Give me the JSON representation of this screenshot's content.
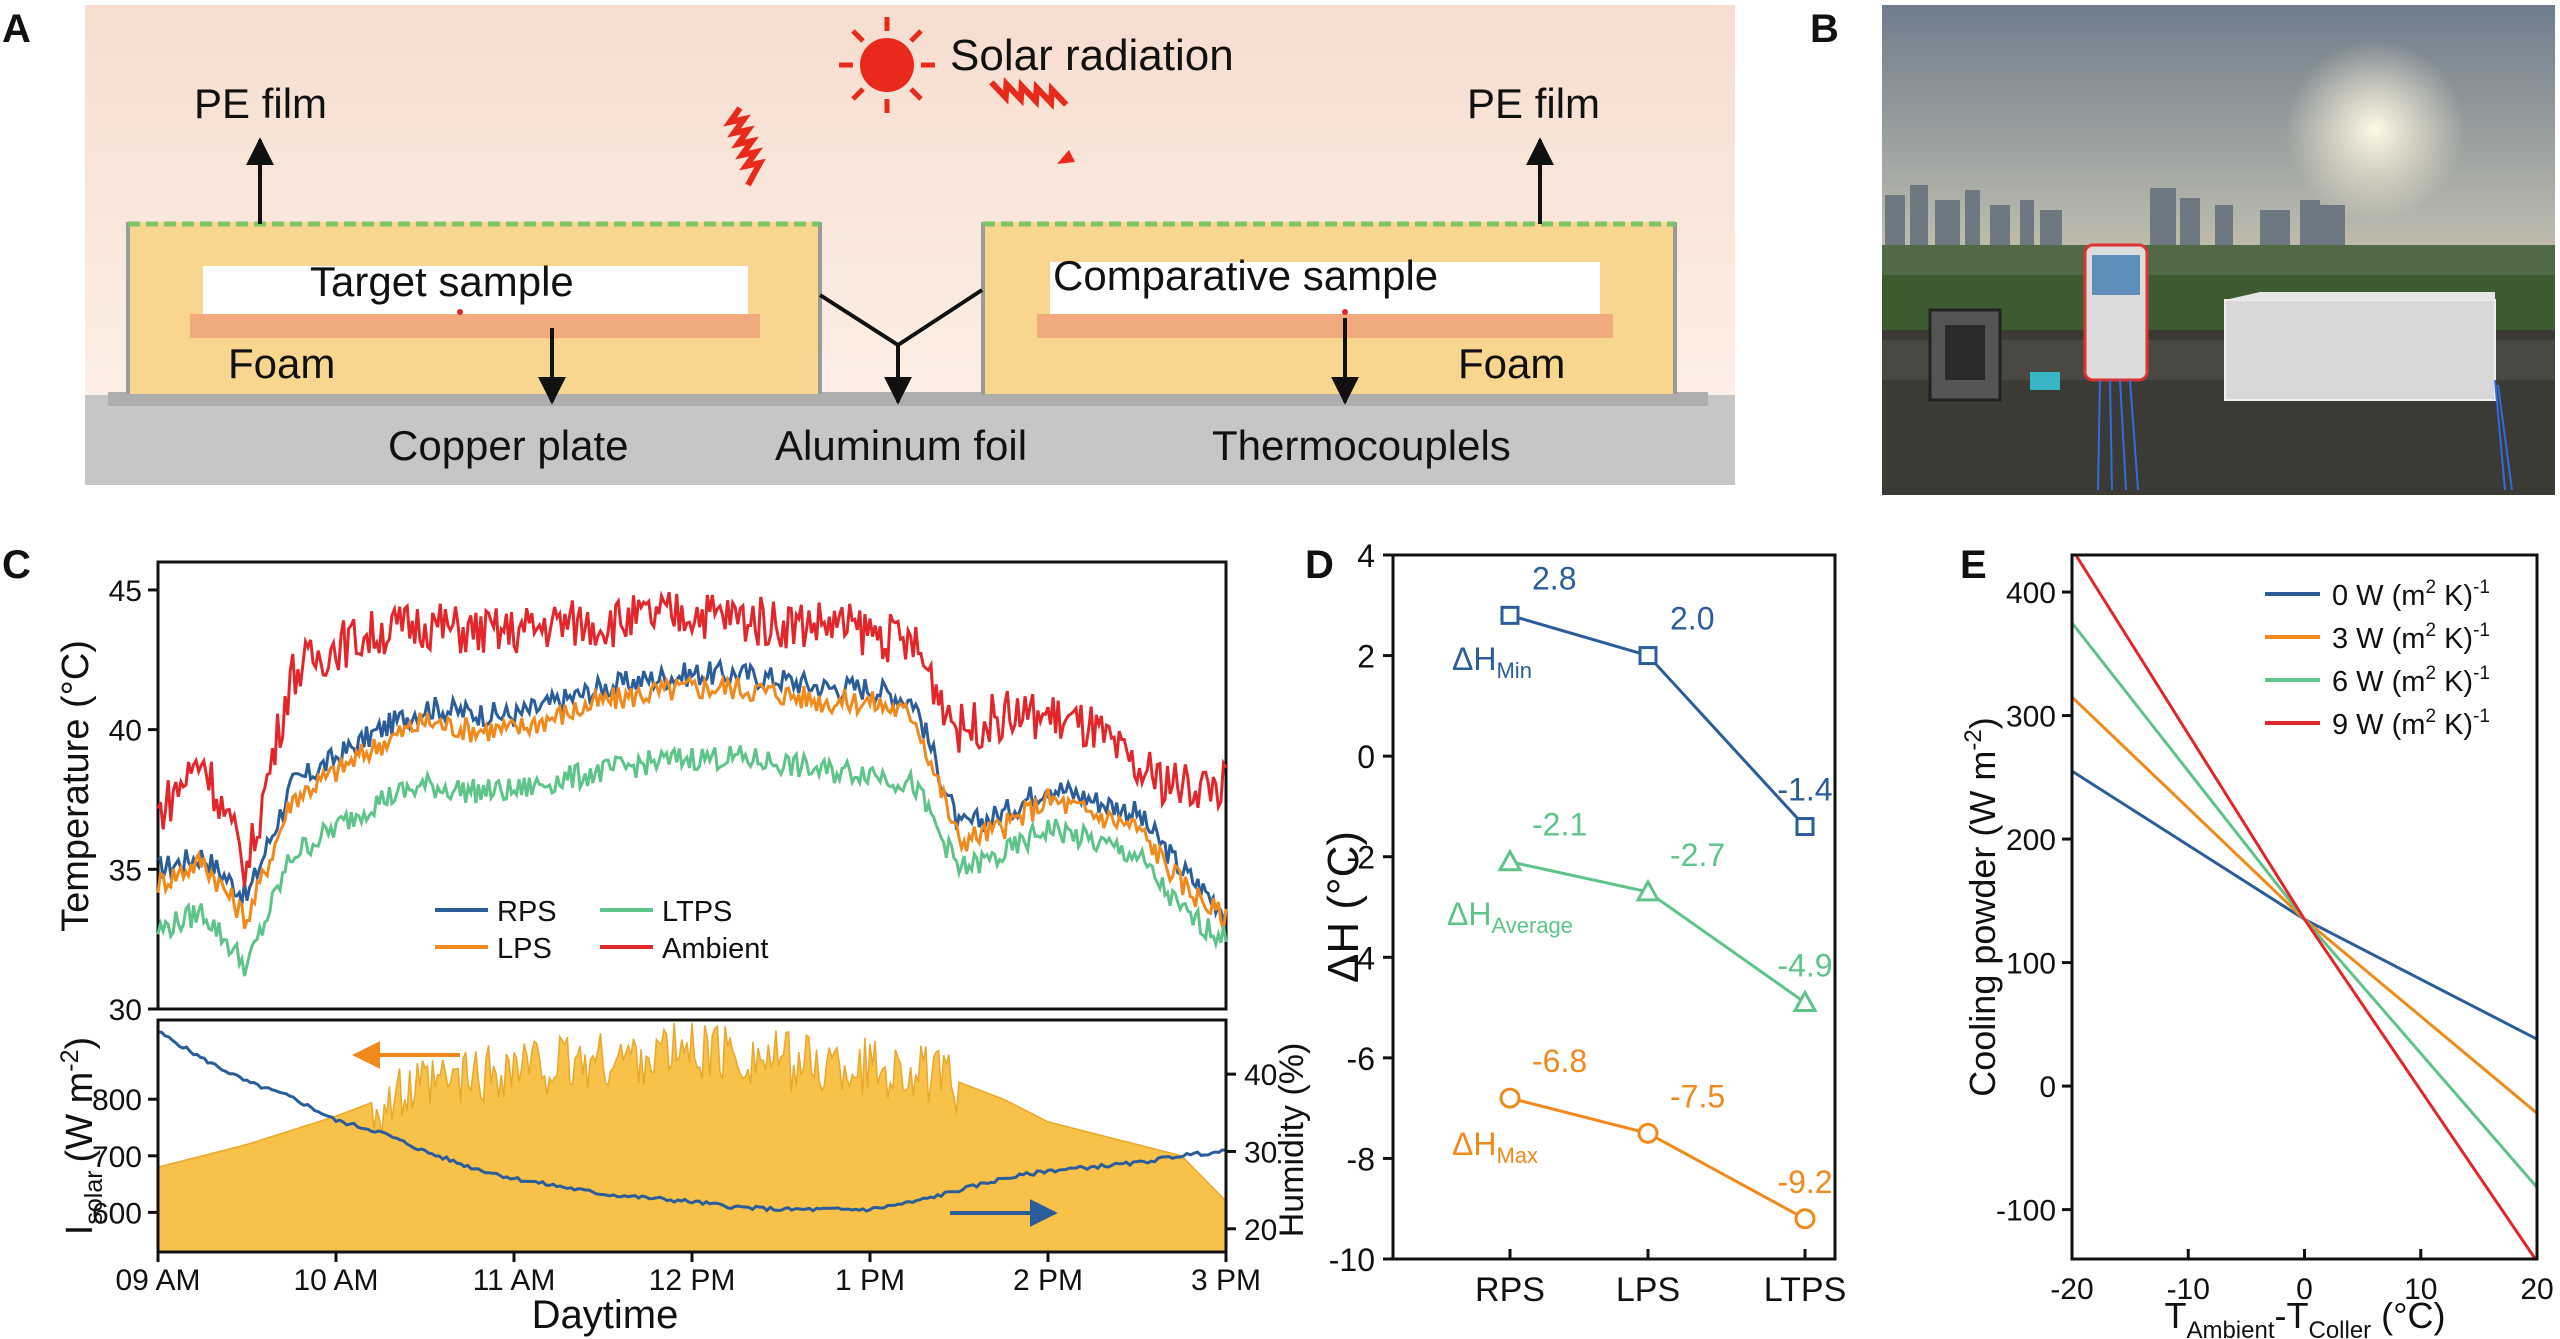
{
  "panel_letters": {
    "a": "A",
    "b": "B",
    "c": "C",
    "d": "D",
    "e": "E"
  },
  "panel_a": {
    "sun_label": "Solar radiation",
    "pe_film_left": "PE film",
    "pe_film_right": "PE film",
    "target_sample": "Target sample",
    "comparative_sample": "Comparative sample",
    "foam_left": "Foam",
    "foam_right": "Foam",
    "copper_plate": "Copper plate",
    "aluminum_foil": "Aluminum foil",
    "thermocouples": "Thermocouplels",
    "colors": {
      "sky_top": "#f7e1d6",
      "foam": "#f8d690",
      "copper": "#f0aa7e",
      "pe_film": "#7cc36a",
      "sun": "#e8291c",
      "ground": "#c4c4c4"
    }
  },
  "panel_b": {
    "description_icon": "rooftop-photo",
    "colors": {
      "sky": "#8f9aa3",
      "trees": "#3d5a2e",
      "wall": "#3b3a35"
    }
  },
  "chart_data": [
    {
      "id": "C_top",
      "type": "line",
      "ylabel": "Temperature (°C)",
      "ylim": [
        30,
        46
      ],
      "yticks": [
        30,
        35,
        40,
        45
      ],
      "x_range_hours": [
        9,
        15
      ],
      "legend": [
        "RPS",
        "LTPS",
        "LPS",
        "Ambient"
      ],
      "legend_position": "bottom-center",
      "series": [
        {
          "name": "RPS",
          "color": "#2b5d9a",
          "x": [
            9,
            9.25,
            9.5,
            9.75,
            10,
            10.25,
            10.5,
            10.75,
            11,
            11.25,
            11.5,
            11.75,
            12,
            12.25,
            12.5,
            12.75,
            13,
            13.25,
            13.5,
            13.75,
            14,
            14.25,
            14.5,
            14.75,
            15
          ],
          "values": [
            35,
            35.5,
            34,
            38,
            39,
            40,
            40.8,
            40.6,
            40.5,
            41,
            41.5,
            41.8,
            42,
            42,
            41.8,
            41.5,
            41.5,
            41,
            36.5,
            37,
            38,
            37.5,
            37,
            35,
            33.5
          ]
        },
        {
          "name": "LPS",
          "color": "#f18a1c",
          "x": [
            9,
            9.25,
            9.5,
            9.75,
            10,
            10.25,
            10.5,
            10.75,
            11,
            11.25,
            11.5,
            11.75,
            12,
            12.25,
            12.5,
            12.75,
            13,
            13.25,
            13.5,
            13.75,
            14,
            14.25,
            14.5,
            14.75,
            15
          ],
          "values": [
            34.5,
            35.3,
            33.2,
            37.5,
            38.5,
            39.5,
            40.3,
            40,
            40,
            40.5,
            41,
            41.3,
            41.5,
            41.5,
            41.3,
            41,
            41,
            40.5,
            36,
            36.5,
            37.5,
            37,
            36.5,
            34.5,
            33.2
          ]
        },
        {
          "name": "LTPS",
          "color": "#5fc48a",
          "x": [
            9,
            9.25,
            9.5,
            9.75,
            10,
            10.25,
            10.5,
            10.75,
            11,
            11.25,
            11.5,
            11.75,
            12,
            12.25,
            12.5,
            12.75,
            13,
            13.25,
            13.5,
            13.75,
            14,
            14.25,
            14.5,
            14.75,
            15
          ],
          "values": [
            32.8,
            33.5,
            31.5,
            35.5,
            36.5,
            37.5,
            38,
            37.8,
            37.8,
            38.2,
            38.5,
            38.8,
            39,
            39,
            38.8,
            38.5,
            38.5,
            38,
            35,
            35.5,
            36.5,
            36,
            35.5,
            33.5,
            32.5
          ]
        },
        {
          "name": "Ambient",
          "color": "#e3262a",
          "x": [
            9,
            9.25,
            9.5,
            9.75,
            10,
            10.25,
            10.5,
            10.75,
            11,
            11.25,
            11.5,
            11.75,
            12,
            12.25,
            12.5,
            12.75,
            13,
            13.25,
            13.5,
            13.75,
            14,
            14.25,
            14.5,
            14.75,
            15
          ],
          "values": [
            37,
            39,
            35,
            42,
            43,
            43.5,
            43.8,
            43.5,
            43.5,
            43.8,
            43.8,
            44,
            44.2,
            44,
            43.8,
            43.8,
            43.5,
            43,
            40,
            40.5,
            40.5,
            40,
            38.5,
            38,
            38
          ]
        }
      ]
    },
    {
      "id": "C_bottom",
      "type": "area",
      "xlabel": "Daytime",
      "ylabel_left": "I_solar (W m^-2)",
      "ylabel_left_parts": {
        "main": "I",
        "sub": "solar",
        "unit": "(W m",
        "sup": "-2",
        "close": ")"
      },
      "ylabel_right": "Humidity (%)",
      "ylim_left": [
        530,
        940
      ],
      "yticks_left": [
        600,
        700,
        800
      ],
      "ylim_right": [
        17,
        47
      ],
      "yticks_right": [
        20,
        30,
        40
      ],
      "xtick_labels": [
        "09 AM",
        "10 AM",
        "11 AM",
        "12 PM",
        "1 PM",
        "2 PM",
        "3 PM"
      ],
      "series": [
        {
          "name": "I_solar",
          "axis": "left",
          "color": "#f7c14a",
          "x": [
            9,
            9.5,
            10,
            10.25,
            10.5,
            10.75,
            11,
            11.25,
            11.5,
            11.75,
            12,
            12.25,
            12.5,
            12.75,
            13,
            13.25,
            13.5,
            13.75,
            14,
            14.25,
            14.5,
            14.75,
            15
          ],
          "values": [
            680,
            720,
            770,
            800,
            830,
            850,
            870,
            870,
            880,
            890,
            900,
            890,
            880,
            870,
            870,
            860,
            830,
            800,
            760,
            740,
            720,
            700,
            620
          ]
        },
        {
          "name": "Humidity",
          "axis": "right",
          "color": "#2b5d9a",
          "x": [
            9,
            9.25,
            9.5,
            9.75,
            10,
            10.25,
            10.5,
            10.75,
            11,
            11.25,
            11.5,
            11.75,
            12,
            12.25,
            12.5,
            12.75,
            13,
            13.25,
            13.5,
            13.75,
            14,
            14.25,
            14.5,
            14.75,
            15
          ],
          "values": [
            45.5,
            42,
            39,
            37,
            34,
            32.5,
            30,
            28,
            26.5,
            25.5,
            24.5,
            24,
            23.5,
            22.8,
            22.5,
            22.5,
            22.5,
            23.5,
            25,
            26.5,
            27.5,
            28,
            28.5,
            29.5,
            30
          ]
        }
      ]
    },
    {
      "id": "D",
      "type": "line",
      "categories": [
        "RPS",
        "LPS",
        "LTPS"
      ],
      "ylabel": "ΔH (°C)",
      "ylim": [
        -10,
        4
      ],
      "yticks": [
        -10,
        -8,
        -6,
        -4,
        -2,
        0,
        2,
        4
      ],
      "series": [
        {
          "name": "ΔH_Min",
          "label_main": "ΔH",
          "label_sub": "Min",
          "color": "#2b5d9a",
          "marker": "square",
          "values": [
            2.8,
            2.0,
            -1.4
          ],
          "labels": [
            "2.8",
            "2.0",
            "-1.4"
          ]
        },
        {
          "name": "ΔH_Average",
          "label_main": "ΔH",
          "label_sub": "Average",
          "color": "#5fc48a",
          "marker": "triangle",
          "values": [
            -2.1,
            -2.7,
            -4.9
          ],
          "labels": [
            "-2.1",
            "-2.7",
            "-4.9"
          ]
        },
        {
          "name": "ΔH_Max",
          "label_main": "ΔH",
          "label_sub": "Max",
          "color": "#f18a1c",
          "marker": "circle",
          "values": [
            -6.8,
            -7.5,
            -9.2
          ],
          "labels": [
            "-6.8",
            "-7.5",
            "-9.2"
          ]
        }
      ]
    },
    {
      "id": "E",
      "type": "line",
      "xlabel": "T_Ambient - T_Coller (°C)",
      "xlabel_parts": {
        "t1": "T",
        "s1": "Ambient",
        "mid": "-T",
        "s2": "Coller",
        "unit": " (°C)"
      },
      "ylabel": "Cooling powder (W m^-2)",
      "ylabel_parts": {
        "main": "Cooling powder (W m",
        "sup": "-2",
        "close": ")"
      },
      "xlim": [
        -20,
        20
      ],
      "xticks": [
        -20,
        -10,
        0,
        10,
        20
      ],
      "ylim": [
        -140,
        430
      ],
      "yticks": [
        -100,
        0,
        100,
        200,
        300,
        400
      ],
      "legend_position": "top-right",
      "series": [
        {
          "name": "0 W (m2 K)-1",
          "legend_main": "0 W (m",
          "legend_sup": "2",
          "legend_mid": " K)",
          "legend_sup2": "-1",
          "color": "#2b5d9a",
          "x": [
            -20,
            0,
            20
          ],
          "values": [
            255,
            135,
            38
          ]
        },
        {
          "name": "3 W (m2 K)-1",
          "legend_main": "3 W (m",
          "legend_sup": "2",
          "legend_mid": " K)",
          "legend_sup2": "-1",
          "color": "#f18a1c",
          "x": [
            -20,
            0,
            20
          ],
          "values": [
            315,
            135,
            -22
          ]
        },
        {
          "name": "6 W (m2 K)-1",
          "legend_main": "6 W (m",
          "legend_sup": "2",
          "legend_mid": " K)",
          "legend_sup2": "-1",
          "color": "#5fc48a",
          "x": [
            -20,
            0,
            20
          ],
          "values": [
            375,
            135,
            -82
          ]
        },
        {
          "name": "9 W (m2 K)-1",
          "legend_main": "9 W (m",
          "legend_sup": "2",
          "legend_mid": " K)",
          "legend_sup2": "-1",
          "color": "#e3262a",
          "x": [
            -20,
            0,
            20
          ],
          "values": [
            435,
            135,
            -142
          ]
        }
      ]
    }
  ]
}
